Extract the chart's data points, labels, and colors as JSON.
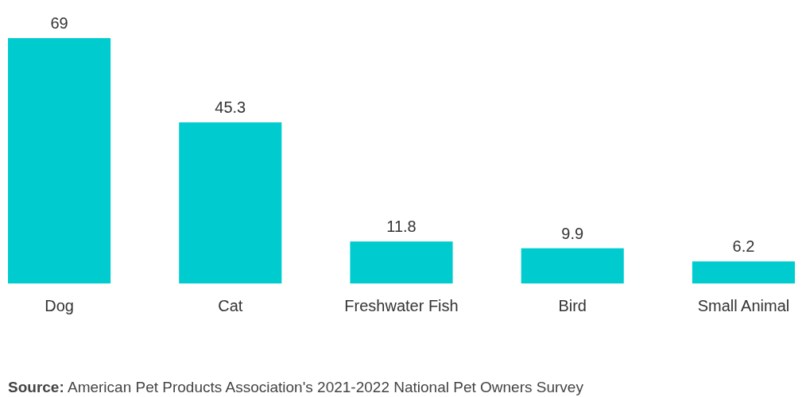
{
  "chart_data": {
    "type": "bar",
    "categories": [
      "Dog",
      "Cat",
      "Freshwater Fish",
      "Bird",
      "Small Animal"
    ],
    "values": [
      69,
      45.3,
      11.8,
      9.9,
      6.2
    ],
    "color": "#00cccf",
    "data_labels": true,
    "annotations": [
      "Source: American Pet Products Association's 2021-2022 National Pet Owners Survey"
    ]
  }
}
